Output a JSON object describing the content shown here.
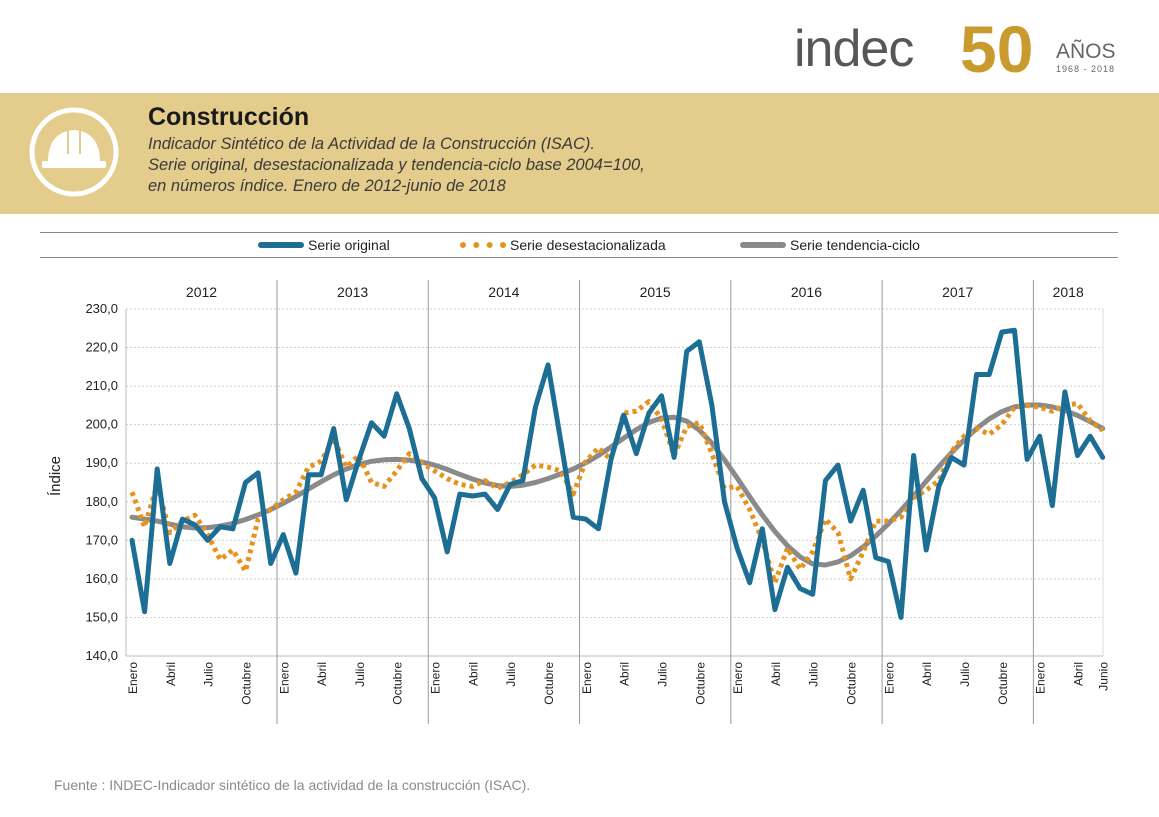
{
  "logo": {
    "brand": "indec",
    "anniversary": "50",
    "anos": "AÑOS",
    "years": "1968 - 2018"
  },
  "header": {
    "title": "Construcción",
    "subtitle_lines": [
      "Indicador Sintético de la Actividad de la Construcción (ISAC).",
      "Serie original, desestacionalizada y tendencia-ciclo base 2004=100,",
      "en números índice. Enero de 2012-junio de 2018"
    ],
    "icon": "construction-helmet-icon"
  },
  "colors": {
    "original": "#1c6e95",
    "desest": "#e8921e",
    "tendencia": "#8a8a8a",
    "banner": "#e4cd8c",
    "gold": "#c99a2e"
  },
  "legend": [
    "Serie original",
    "Serie desestacionalizada",
    "Serie tendencia-ciclo"
  ],
  "chart_data": {
    "type": "line",
    "ylabel": "Índice",
    "ylim": [
      140,
      230
    ],
    "yticks": [
      "140,0",
      "150,0",
      "160,0",
      "170,0",
      "180,0",
      "190,0",
      "200,0",
      "210,0",
      "220,0",
      "230,0"
    ],
    "years": [
      "2012",
      "2013",
      "2014",
      "2015",
      "2016",
      "2017",
      "2018"
    ],
    "months_per_year": [
      12,
      12,
      12,
      12,
      12,
      12,
      6
    ],
    "x_tick_labels": [
      "Enero",
      "Abril",
      "Julio",
      "Octubre"
    ],
    "last_tick_labels": [
      "Enero",
      "Abril",
      "Junio"
    ],
    "grid": true,
    "series": [
      {
        "name": "Serie original",
        "style": "solid-thick",
        "values": [
          170.0,
          151.5,
          188.5,
          164.0,
          175.5,
          174.0,
          170.0,
          173.5,
          173.0,
          185.0,
          187.5,
          164.0,
          171.5,
          161.5,
          187.0,
          187.0,
          199.0,
          180.5,
          191.0,
          200.5,
          197.0,
          208.0,
          199.0,
          186.0,
          181.0,
          167.0,
          182.0,
          181.5,
          182.0,
          178.0,
          184.5,
          185.5,
          204.5,
          215.5,
          196.0,
          176.0,
          175.5,
          173.0,
          191.0,
          202.5,
          192.5,
          203.0,
          207.5,
          191.5,
          219.0,
          221.5,
          205.0,
          180.0,
          168.0,
          159.0,
          173.0,
          152.0,
          163.0,
          157.5,
          156.0,
          185.5,
          189.5,
          175.0,
          183.0,
          165.5,
          164.5,
          150.0,
          192.0,
          167.5,
          184.0,
          191.5,
          189.5,
          213.0,
          213.0,
          224.0,
          224.5,
          191.0,
          197.0,
          179.0,
          208.5,
          192.0,
          197.0,
          191.5
        ]
      },
      {
        "name": "Serie desestacionalizada",
        "style": "dotted",
        "values": [
          182.5,
          173.5,
          184.5,
          172.0,
          175.0,
          176.5,
          171.5,
          165.0,
          167.5,
          162.0,
          175.5,
          178.0,
          180.5,
          182.5,
          189.0,
          190.5,
          196.5,
          189.0,
          192.0,
          185.0,
          184.0,
          188.0,
          192.5,
          190.0,
          188.0,
          186.0,
          184.5,
          184.0,
          185.5,
          183.5,
          185.0,
          187.0,
          189.5,
          189.0,
          188.0,
          182.0,
          190.5,
          194.0,
          191.0,
          203.0,
          203.5,
          206.0,
          201.5,
          192.0,
          199.5,
          200.5,
          192.5,
          183.5,
          184.0,
          178.0,
          170.0,
          159.0,
          168.0,
          162.5,
          167.0,
          175.5,
          172.0,
          160.0,
          167.0,
          175.0,
          175.0,
          176.0,
          181.0,
          183.0,
          185.5,
          193.0,
          197.0,
          199.0,
          197.5,
          200.0,
          204.5,
          205.0,
          204.5,
          203.5,
          205.0,
          205.5,
          201.0,
          198.5
        ]
      },
      {
        "name": "Serie tendencia-ciclo",
        "style": "solid-gray",
        "values": [
          176.0,
          175.5,
          175.0,
          174.2,
          173.5,
          173.2,
          173.3,
          173.7,
          174.4,
          175.4,
          176.6,
          178.0,
          179.6,
          181.4,
          183.3,
          185.2,
          187.0,
          188.5,
          189.7,
          190.5,
          190.9,
          191.0,
          190.8,
          190.3,
          189.5,
          188.4,
          187.1,
          185.9,
          184.9,
          184.2,
          184.0,
          184.3,
          185.0,
          186.0,
          187.2,
          188.5,
          190.1,
          192.0,
          194.2,
          196.5,
          198.7,
          200.6,
          201.7,
          201.9,
          200.9,
          198.6,
          195.2,
          190.9,
          186.2,
          181.3,
          176.6,
          172.3,
          168.6,
          165.7,
          163.9,
          163.6,
          164.4,
          166.0,
          168.3,
          171.1,
          174.3,
          177.8,
          181.5,
          185.3,
          189.1,
          192.7,
          196.0,
          199.0,
          201.5,
          203.4,
          204.6,
          205.1,
          205.1,
          204.6,
          203.7,
          202.4,
          200.8,
          199.0
        ]
      }
    ]
  },
  "footer": {
    "source": "Fuente : INDEC-Indicador sintético de la actividad de la construcción (ISAC)."
  }
}
